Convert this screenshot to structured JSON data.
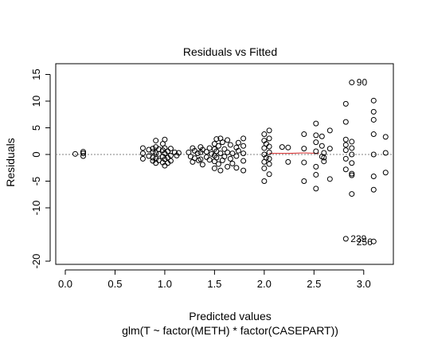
{
  "chart_data": {
    "type": "scatter",
    "title": "Residuals vs Fitted",
    "xlabel": "Predicted values",
    "xlabel2": "glm(T ~ factor(METH) * factor(CASEPART))",
    "ylabel": "Residuals",
    "xlim": [
      0.0,
      3.25
    ],
    "ylim": [
      -20,
      17
    ],
    "xticks": [
      "0.0",
      "0.5",
      "1.0",
      "1.5",
      "2.0",
      "2.5",
      "3.0"
    ],
    "yticks": [
      "15",
      "10",
      "5",
      "0",
      "-5",
      "-10",
      "-20"
    ],
    "grid": false,
    "reference_line": 0,
    "colors": {
      "points": "#000000",
      "smooth": "#d62728",
      "refline": "#808080"
    },
    "points": [
      [
        0.1,
        0.1
      ],
      [
        0.18,
        0.5
      ],
      [
        0.18,
        0.2
      ],
      [
        0.18,
        -0.3
      ],
      [
        0.78,
        1.2
      ],
      [
        0.78,
        0.2
      ],
      [
        0.78,
        -0.8
      ],
      [
        0.84,
        0.9
      ],
      [
        0.84,
        -0.3
      ],
      [
        0.88,
        1.1
      ],
      [
        0.88,
        0.5
      ],
      [
        0.88,
        -0.6
      ],
      [
        0.88,
        -1.2
      ],
      [
        0.91,
        2.6
      ],
      [
        0.91,
        1.4
      ],
      [
        0.91,
        0.3
      ],
      [
        0.91,
        -0.8
      ],
      [
        0.91,
        -1.6
      ],
      [
        0.94,
        1.0
      ],
      [
        0.94,
        0.1
      ],
      [
        0.94,
        -1.1
      ],
      [
        0.98,
        2.0
      ],
      [
        0.98,
        0.8
      ],
      [
        0.98,
        -0.4
      ],
      [
        0.98,
        -1.5
      ],
      [
        1.0,
        1.2
      ],
      [
        1.0,
        0.2
      ],
      [
        1.0,
        -0.9
      ],
      [
        1.0,
        -2.1
      ],
      [
        1.0,
        2.8
      ],
      [
        1.03,
        0.6
      ],
      [
        1.03,
        -0.6
      ],
      [
        1.03,
        -1.6
      ],
      [
        1.06,
        1.1
      ],
      [
        1.06,
        -0.2
      ],
      [
        1.06,
        -1.2
      ],
      [
        1.1,
        0.4
      ],
      [
        1.12,
        -0.2
      ],
      [
        1.14,
        0.3
      ],
      [
        1.24,
        0.4
      ],
      [
        1.26,
        -0.4
      ],
      [
        1.28,
        1.2
      ],
      [
        1.28,
        -1.4
      ],
      [
        1.3,
        0.7
      ],
      [
        1.3,
        -0.7
      ],
      [
        1.33,
        0.2
      ],
      [
        1.34,
        -1.1
      ],
      [
        1.36,
        1.4
      ],
      [
        1.36,
        0.4
      ],
      [
        1.36,
        -0.9
      ],
      [
        1.38,
        0.9
      ],
      [
        1.38,
        -1.9
      ],
      [
        1.42,
        0.5
      ],
      [
        1.42,
        -0.5
      ],
      [
        1.45,
        1.2
      ],
      [
        1.45,
        -1.0
      ],
      [
        1.47,
        0.1
      ],
      [
        1.5,
        2.0
      ],
      [
        1.5,
        1.0
      ],
      [
        1.5,
        -0.2
      ],
      [
        1.5,
        -1.3
      ],
      [
        1.5,
        -2.6
      ],
      [
        1.52,
        2.9
      ],
      [
        1.52,
        0.6
      ],
      [
        1.52,
        -0.6
      ],
      [
        1.54,
        1.6
      ],
      [
        1.54,
        -1.8
      ],
      [
        1.56,
        3.0
      ],
      [
        1.56,
        0.2
      ],
      [
        1.56,
        -3.0
      ],
      [
        1.58,
        2.3
      ],
      [
        1.58,
        -1.1
      ],
      [
        1.6,
        1.0
      ],
      [
        1.6,
        -0.4
      ],
      [
        1.63,
        2.7
      ],
      [
        1.63,
        0.4
      ],
      [
        1.63,
        -2.3
      ],
      [
        1.66,
        1.8
      ],
      [
        1.66,
        -0.8
      ],
      [
        1.68,
        0.2
      ],
      [
        1.68,
        -1.7
      ],
      [
        1.72,
        1.3
      ],
      [
        1.72,
        -0.3
      ],
      [
        1.72,
        -2.5
      ],
      [
        1.74,
        2.2
      ],
      [
        1.74,
        0.7
      ],
      [
        1.79,
        3.0
      ],
      [
        1.79,
        1.6
      ],
      [
        1.79,
        0.2
      ],
      [
        1.79,
        -1.2
      ],
      [
        1.79,
        -3.0
      ],
      [
        2.0,
        3.8
      ],
      [
        2.0,
        2.6
      ],
      [
        2.0,
        1.2
      ],
      [
        2.0,
        0.0
      ],
      [
        2.0,
        -1.4
      ],
      [
        2.0,
        -2.6
      ],
      [
        2.0,
        -5.0
      ],
      [
        2.02,
        2.0
      ],
      [
        2.02,
        -0.6
      ],
      [
        2.05,
        4.5
      ],
      [
        2.05,
        3.0
      ],
      [
        2.05,
        1.5
      ],
      [
        2.05,
        0.4
      ],
      [
        2.05,
        -0.8
      ],
      [
        2.05,
        -1.8
      ],
      [
        2.05,
        -3.7
      ],
      [
        2.18,
        1.4
      ],
      [
        2.24,
        1.3
      ],
      [
        2.24,
        -1.4
      ],
      [
        2.4,
        3.8
      ],
      [
        2.4,
        1.1
      ],
      [
        2.4,
        -1.5
      ],
      [
        2.4,
        -5.0
      ],
      [
        2.52,
        5.8
      ],
      [
        2.52,
        3.6
      ],
      [
        2.52,
        2.3
      ],
      [
        2.52,
        0.6
      ],
      [
        2.52,
        -2.3
      ],
      [
        2.52,
        -3.8
      ],
      [
        2.52,
        -6.4
      ],
      [
        2.58,
        3.4
      ],
      [
        2.58,
        1.6
      ],
      [
        2.58,
        -0.4
      ],
      [
        2.6,
        0.3
      ],
      [
        2.6,
        -0.6
      ],
      [
        2.6,
        -1.3
      ],
      [
        2.66,
        4.5
      ],
      [
        2.66,
        1.1
      ],
      [
        2.66,
        -4.6
      ],
      [
        2.82,
        9.5
      ],
      [
        2.82,
        6.1
      ],
      [
        2.82,
        2.8
      ],
      [
        2.82,
        1.8
      ],
      [
        2.82,
        0.8
      ],
      [
        2.82,
        -0.8
      ],
      [
        2.82,
        -2.8
      ],
      [
        2.82,
        -15.8
      ],
      [
        2.88,
        13.5
      ],
      [
        2.88,
        2.4
      ],
      [
        2.88,
        1.2
      ],
      [
        2.88,
        0.0
      ],
      [
        2.88,
        -1.6
      ],
      [
        2.88,
        -3.6
      ],
      [
        2.88,
        -3.9
      ],
      [
        2.88,
        -7.4
      ],
      [
        3.1,
        10.1
      ],
      [
        3.1,
        8.0
      ],
      [
        3.1,
        6.5
      ],
      [
        3.1,
        3.8
      ],
      [
        3.1,
        0.0
      ],
      [
        3.1,
        -4.1
      ],
      [
        3.1,
        -6.6
      ],
      [
        3.1,
        -16.3
      ],
      [
        3.22,
        3.3
      ],
      [
        3.22,
        0.3
      ],
      [
        3.22,
        -3.4
      ]
    ],
    "smooth_line": [
      [
        2.05,
        0.2
      ],
      [
        2.24,
        0.2
      ],
      [
        2.4,
        0.3
      ],
      [
        2.55,
        0.2
      ]
    ],
    "point_labels": [
      {
        "text": "90",
        "x": 2.88,
        "y": 13.5
      },
      {
        "text": "239",
        "x": 2.82,
        "y": -15.8
      },
      {
        "text": "256",
        "x": 2.88,
        "y": -16.4
      }
    ]
  }
}
